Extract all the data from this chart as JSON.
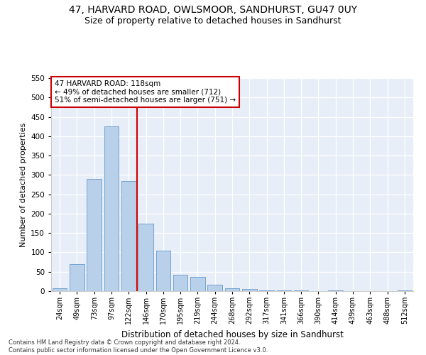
{
  "title1": "47, HARVARD ROAD, OWLSMOOR, SANDHURST, GU47 0UY",
  "title2": "Size of property relative to detached houses in Sandhurst",
  "xlabel": "Distribution of detached houses by size in Sandhurst",
  "ylabel": "Number of detached properties",
  "categories": [
    "24sqm",
    "49sqm",
    "73sqm",
    "97sqm",
    "122sqm",
    "146sqm",
    "170sqm",
    "195sqm",
    "219sqm",
    "244sqm",
    "268sqm",
    "292sqm",
    "317sqm",
    "341sqm",
    "366sqm",
    "390sqm",
    "414sqm",
    "439sqm",
    "463sqm",
    "488sqm",
    "512sqm"
  ],
  "values": [
    7,
    70,
    290,
    425,
    285,
    175,
    105,
    43,
    37,
    16,
    7,
    5,
    2,
    1,
    1,
    0,
    1,
    0,
    0,
    0,
    2
  ],
  "bar_color": "#b8d0ea",
  "bar_edge_color": "#6699cc",
  "vline_x_index": 4,
  "vline_color": "#cc0000",
  "annotation_line1": "47 HARVARD ROAD: 118sqm",
  "annotation_line2": "← 49% of detached houses are smaller (712)",
  "annotation_line3": "51% of semi-detached houses are larger (751) →",
  "annotation_box_color": "#ffffff",
  "annotation_box_edge": "#cc0000",
  "ylim": [
    0,
    550
  ],
  "yticks": [
    0,
    50,
    100,
    150,
    200,
    250,
    300,
    350,
    400,
    450,
    500,
    550
  ],
  "footer1": "Contains HM Land Registry data © Crown copyright and database right 2024.",
  "footer2": "Contains public sector information licensed under the Open Government Licence v3.0.",
  "bg_color": "#e8eef8",
  "title_fontsize": 10,
  "subtitle_fontsize": 9,
  "bar_width": 0.85
}
